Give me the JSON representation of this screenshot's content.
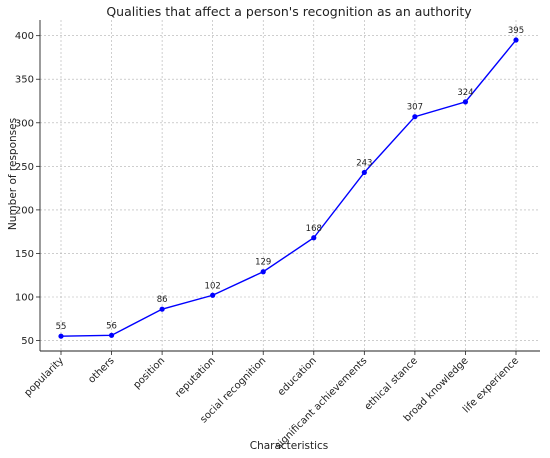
{
  "chart_data": {
    "type": "line",
    "title": "Qualities that affect a person's recognition as an authority",
    "xlabel": "Characteristics",
    "ylabel": "Number of responses",
    "categories": [
      "popularity",
      "others",
      "position",
      "reputation",
      "social recognition",
      "education",
      "significant achievements",
      "ethical stance",
      "broad knowledge",
      "life experience"
    ],
    "values": [
      55,
      56,
      86,
      102,
      129,
      168,
      243,
      307,
      324,
      395
    ],
    "ylim": [
      38,
      418
    ],
    "yticks": [
      50,
      100,
      150,
      200,
      250,
      300,
      350,
      400
    ],
    "grid": true,
    "line_color": "#0000ff",
    "marker": "circle",
    "data_labels": true
  }
}
